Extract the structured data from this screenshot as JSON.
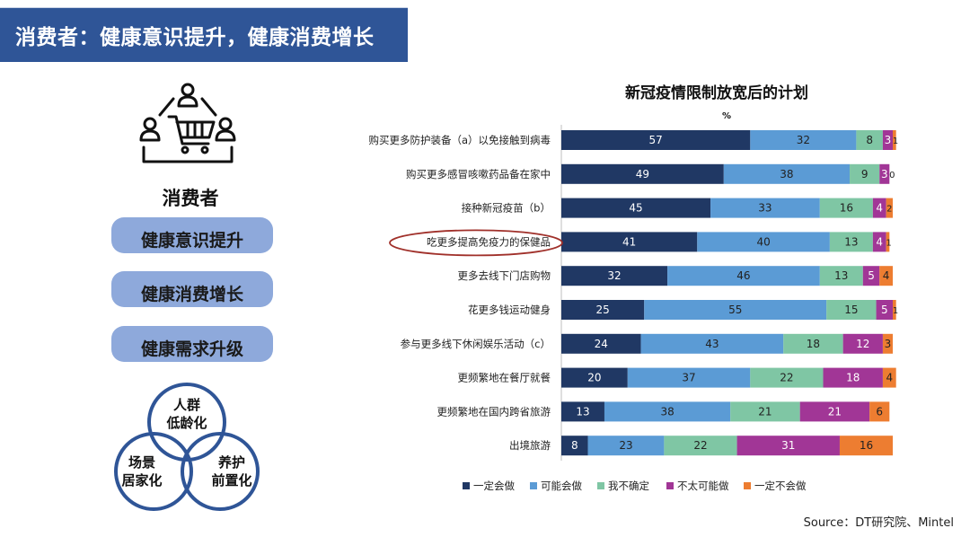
{
  "header": {
    "title": "消费者：健康意识提升，健康消费增长"
  },
  "left": {
    "icon": "consumer-shopping-cart-icon",
    "label": "消费者",
    "pills": [
      "健康意识提升",
      "健康消费增长",
      "健康需求升级"
    ],
    "venn": {
      "top": [
        "人群",
        "低龄化"
      ],
      "left": [
        "场景",
        "居家化"
      ],
      "right": [
        "养护",
        "前置化"
      ]
    }
  },
  "colors": {
    "header_bg": "#2f5597",
    "pill_bg": "#8ea9db",
    "venn_ring": "#2f5597",
    "highlight_ellipse": "#a0302a",
    "series": [
      "#203864",
      "#5b9bd5",
      "#7fc6a4",
      "#a13696",
      "#ed7d31"
    ]
  },
  "chart_data": {
    "type": "bar",
    "orientation": "horizontal",
    "stacked": true,
    "title": "新冠疫情限制放宽后的计划",
    "subtitle": "%",
    "categories": [
      "购买更多防护装备（a）以免接触到病毒",
      "购买更多感冒咳嗽药品备在家中",
      "接种新冠疫苗（b）",
      "吃更多提高免疫力的保健品",
      "更多去线下门店购物",
      "花更多钱运动健身",
      "参与更多线下休闲娱乐活动（c）",
      "更频繁地在餐厅就餐",
      "更频繁地在国内跨省旅游",
      "出境旅游"
    ],
    "series": [
      {
        "name": "一定会做",
        "values": [
          57,
          49,
          45,
          41,
          32,
          25,
          24,
          20,
          13,
          8
        ]
      },
      {
        "name": "可能会做",
        "values": [
          32,
          38,
          33,
          40,
          46,
          55,
          43,
          37,
          38,
          23
        ]
      },
      {
        "name": "我不确定",
        "values": [
          8,
          9,
          16,
          13,
          13,
          15,
          18,
          22,
          21,
          22
        ]
      },
      {
        "name": "不太可能做",
        "values": [
          3,
          3,
          4,
          4,
          5,
          5,
          12,
          18,
          21,
          31
        ]
      },
      {
        "name": "一定不会做",
        "values": [
          1,
          0,
          2,
          1,
          4,
          1,
          3,
          4,
          6,
          16
        ]
      }
    ],
    "highlighted_category": "吃更多提高免疫力的保健品",
    "legend_position": "bottom",
    "grid": false
  },
  "footer": {
    "source": "Source：DT研究院、Mintel"
  }
}
